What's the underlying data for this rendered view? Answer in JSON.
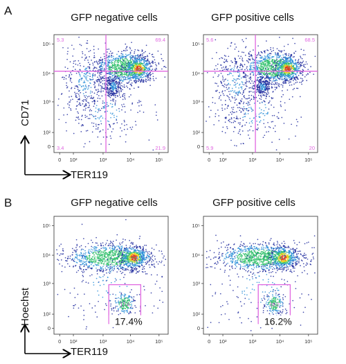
{
  "figure": {
    "panels": [
      {
        "letter": "A",
        "y_axis_label": "CD71",
        "x_axis_label": "TER119"
      },
      {
        "letter": "B",
        "y_axis_label": "Hoechst",
        "x_axis_label": "TER119"
      }
    ]
  },
  "chart_data": [
    {
      "type": "scatter",
      "panel": "A",
      "title": "GFP negative cells",
      "xlabel": "TER119",
      "ylabel": "CD71",
      "scale": "log (biexponential)",
      "x_ticks": [
        "0",
        "10²",
        "10³",
        "10⁴",
        "10⁵"
      ],
      "y_ticks": [
        "0",
        "10²",
        "10³",
        "10⁴",
        "10⁵"
      ],
      "gate": "quadrant",
      "quadrant_percentages": {
        "upper_left": "5.3",
        "upper_right": "69.4",
        "lower_left": "3.4",
        "lower_right": "21.9"
      },
      "colors": {
        "gate": "#e066e0",
        "density": [
          "#1e2a9e",
          "#2c8fd8",
          "#2fbf6a",
          "#f2d21c",
          "#e4371f"
        ]
      }
    },
    {
      "type": "scatter",
      "panel": "A",
      "title": "GFP positive cells",
      "xlabel": "TER119",
      "ylabel": "CD71",
      "scale": "log (biexponential)",
      "x_ticks": [
        "0",
        "10²",
        "10³",
        "10⁴",
        "10⁵"
      ],
      "y_ticks": [
        "0",
        "10²",
        "10³",
        "10⁴",
        "10⁵"
      ],
      "gate": "quadrant",
      "quadrant_percentages": {
        "upper_left": "5.6",
        "upper_right": "68.5",
        "lower_left": "5.9",
        "lower_right": "20"
      },
      "colors": {
        "gate": "#e066e0",
        "density": [
          "#1e2a9e",
          "#2c8fd8",
          "#2fbf6a",
          "#f2d21c",
          "#e4371f"
        ]
      }
    },
    {
      "type": "scatter",
      "panel": "B",
      "title": "GFP negative cells",
      "xlabel": "TER119",
      "ylabel": "Hoechst",
      "scale": "log (biexponential)",
      "x_ticks": [
        "0",
        "10²",
        "10³",
        "10⁴",
        "10⁵"
      ],
      "y_ticks": [
        "0",
        "10²",
        "10³",
        "10⁴",
        "10⁵"
      ],
      "gate": "rectangle",
      "gate_label": "17.4",
      "gate_percentage_label": "17.4%",
      "colors": {
        "gate": "#e066e0",
        "density": [
          "#1e2a9e",
          "#2c8fd8",
          "#2fbf6a",
          "#f2d21c",
          "#e4371f"
        ]
      }
    },
    {
      "type": "scatter",
      "panel": "B",
      "title": "GFP positive cells",
      "xlabel": "TER119",
      "ylabel": "Hoechst",
      "scale": "log (biexponential)",
      "x_ticks": [
        "0",
        "10²",
        "10³",
        "10⁴",
        "10⁵"
      ],
      "y_ticks": [
        "0",
        "10²",
        "10³",
        "10⁴",
        "10⁵"
      ],
      "gate": "rectangle",
      "gate_label": "16.2",
      "gate_percentage_label": "16.2%",
      "colors": {
        "gate": "#e066e0",
        "density": [
          "#1e2a9e",
          "#2c8fd8",
          "#2fbf6a",
          "#f2d21c",
          "#e4371f"
        ]
      }
    }
  ]
}
